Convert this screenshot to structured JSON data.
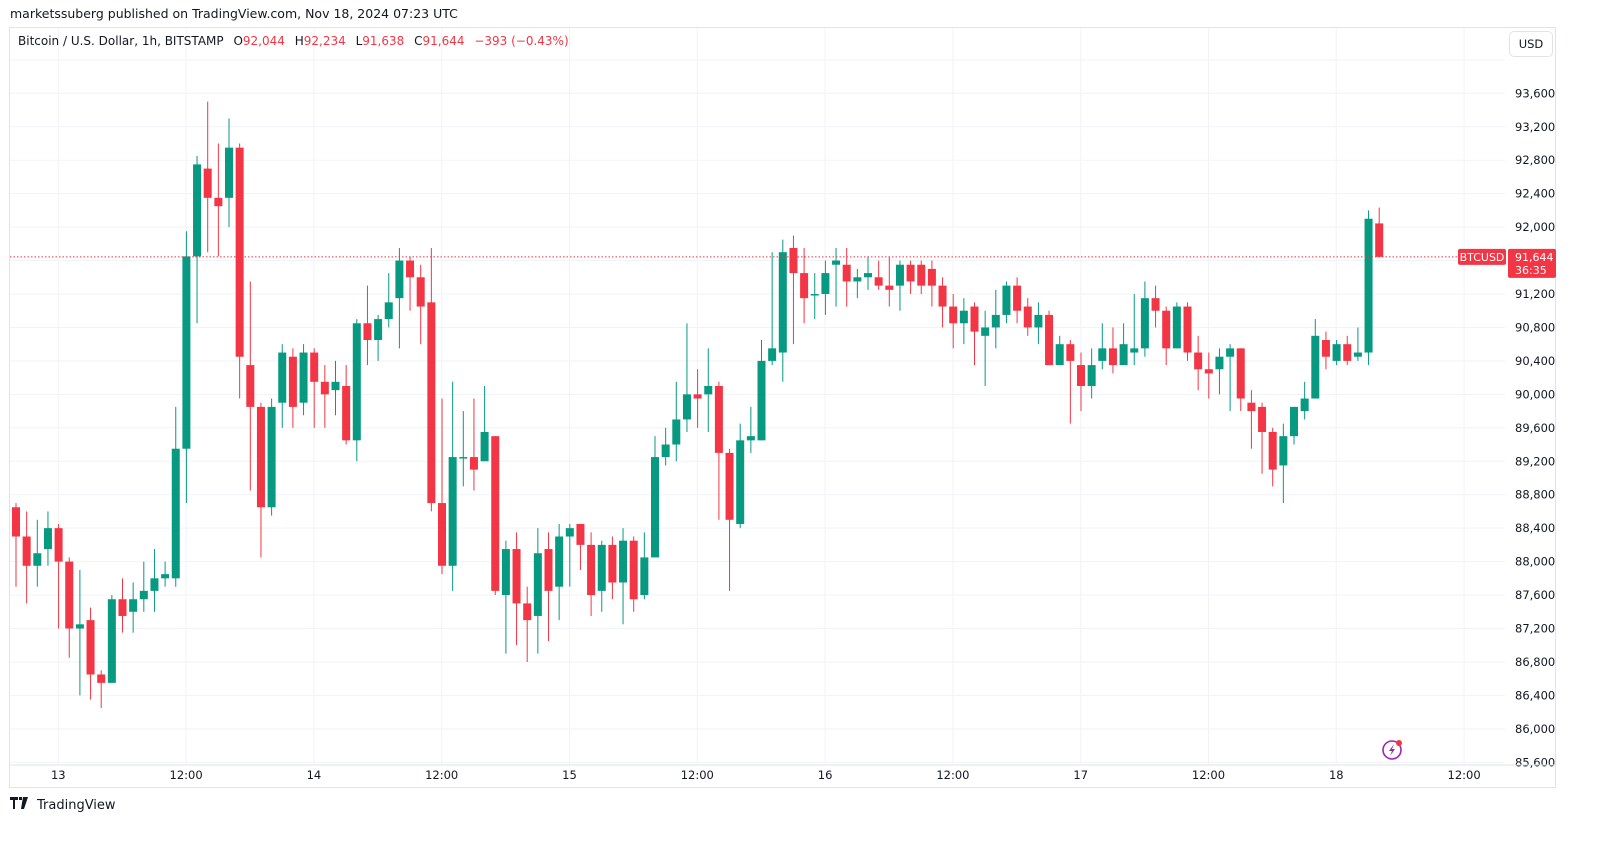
{
  "publish_line": "marketssuberg published on TradingView.com, Nov 18, 2024 07:23 UTC",
  "legend": {
    "symbol": "Bitcoin / U.S. Dollar, 1h, BITSTAMP",
    "open_label": "O",
    "open": "92,044",
    "high_label": "H",
    "high": "92,234",
    "low_label": "L",
    "low": "91,638",
    "close_label": "C",
    "close": "91,644",
    "change": "−393 (−0.43%)"
  },
  "currency_button": "USD",
  "price_tag": {
    "symbol": "BTCUSD",
    "price": "91,644",
    "countdown": "36:35"
  },
  "footer": {
    "logo_icon": "tradingview-logo-icon",
    "brand": "TradingView"
  },
  "colors": {
    "up": "#089981",
    "down": "#f23645",
    "grid": "#f0f3fa",
    "last_price_line": "#f23645",
    "text": "#131722",
    "lightning_icon": "#9c27b0"
  },
  "chart_data": {
    "type": "candlestick",
    "title": "Bitcoin / U.S. Dollar, 1h, BITSTAMP",
    "xlabel": "",
    "ylabel": "USD",
    "ylim": [
      85500,
      94100
    ],
    "y_ticks": [
      85600,
      86000,
      86400,
      86800,
      87200,
      87600,
      88000,
      88400,
      88800,
      89200,
      89600,
      90000,
      90400,
      90800,
      91200,
      91600,
      92000,
      92400,
      92800,
      93200,
      93600
    ],
    "y_tick_labels": [
      "85,600",
      "86,000",
      "86,400",
      "86,800",
      "87,200",
      "87,600",
      "88,000",
      "88,400",
      "88,800",
      "89,200",
      "89,600",
      "90,000",
      "90,400",
      "90,800",
      "91,200",
      "",
      "92,000",
      "92,400",
      "92,800",
      "93,200",
      "93,600"
    ],
    "x_ticks": [
      {
        "label": "13",
        "index": 2
      },
      {
        "label": "12:00",
        "index": 14
      },
      {
        "label": "14",
        "index": 26
      },
      {
        "label": "12:00",
        "index": 38
      },
      {
        "label": "15",
        "index": 50
      },
      {
        "label": "12:00",
        "index": 62
      },
      {
        "label": "16",
        "index": 74
      },
      {
        "label": "12:00",
        "index": 86
      },
      {
        "label": "17",
        "index": 98
      },
      {
        "label": "12:00",
        "index": 110
      },
      {
        "label": "18",
        "index": 122
      },
      {
        "label": "12:00",
        "index": 134
      }
    ],
    "last_price": 91644,
    "grid": true,
    "legend_position": "top-left",
    "candles": [
      [
        88650,
        88300,
        88700,
        87700
      ],
      [
        88300,
        87950,
        88600,
        87500
      ],
      [
        87950,
        88100,
        88500,
        87700
      ],
      [
        88150,
        88400,
        88600,
        87950
      ],
      [
        88400,
        88000,
        88450,
        87200
      ],
      [
        88000,
        87200,
        88050,
        86850
      ],
      [
        87200,
        87250,
        87900,
        86400
      ],
      [
        87300,
        86650,
        87450,
        86350
      ],
      [
        86650,
        86550,
        86700,
        86250
      ],
      [
        86550,
        87550,
        87600,
        86550
      ],
      [
        87550,
        87350,
        87800,
        87150
      ],
      [
        87400,
        87550,
        87750,
        87150
      ],
      [
        87550,
        87650,
        88000,
        87400
      ],
      [
        87650,
        87800,
        88150,
        87400
      ],
      [
        87800,
        87850,
        88000,
        87700
      ],
      [
        87800,
        89350,
        89850,
        87700
      ],
      [
        89350,
        91650,
        91950,
        88700
      ],
      [
        91650,
        92750,
        92850,
        90850
      ],
      [
        92700,
        92350,
        93500,
        91700
      ],
      [
        92350,
        92250,
        93000,
        91650
      ],
      [
        92350,
        92950,
        93300,
        92000
      ],
      [
        92950,
        90450,
        93000,
        89950
      ],
      [
        90350,
        89850,
        91350,
        88850
      ],
      [
        89850,
        88650,
        89900,
        88050
      ],
      [
        88650,
        89850,
        89950,
        88550
      ],
      [
        89900,
        90500,
        90600,
        89600
      ],
      [
        90450,
        89850,
        90550,
        89600
      ],
      [
        89900,
        90500,
        90600,
        89750
      ],
      [
        90500,
        90150,
        90550,
        89600
      ],
      [
        90150,
        90000,
        90350,
        89600
      ],
      [
        90050,
        90150,
        90400,
        89750
      ],
      [
        90100,
        89450,
        90350,
        89400
      ],
      [
        89450,
        90850,
        90900,
        89200
      ],
      [
        90850,
        90650,
        91300,
        90350
      ],
      [
        90650,
        90900,
        90950,
        90400
      ],
      [
        90900,
        91100,
        91450,
        90800
      ],
      [
        91150,
        91600,
        91750,
        90550
      ],
      [
        91600,
        91400,
        91650,
        91000
      ],
      [
        91400,
        91050,
        91550,
        90600
      ],
      [
        91100,
        88700,
        91750,
        88600
      ],
      [
        88700,
        87950,
        89950,
        87850
      ],
      [
        87950,
        89250,
        90150,
        87650
      ],
      [
        89250,
        89250,
        89800,
        88900
      ],
      [
        89250,
        89100,
        89950,
        88850
      ],
      [
        89200,
        89550,
        90100,
        89200
      ],
      [
        89500,
        87650,
        89500,
        87600
      ],
      [
        87600,
        88150,
        88250,
        86900
      ],
      [
        88150,
        87500,
        88350,
        87000
      ],
      [
        87500,
        87300,
        87700,
        86800
      ],
      [
        87350,
        88100,
        88400,
        86900
      ],
      [
        88150,
        87650,
        88350,
        87050
      ],
      [
        87700,
        88300,
        88450,
        87300
      ],
      [
        88300,
        88400,
        88450,
        87700
      ],
      [
        88450,
        88200,
        88450,
        87900
      ],
      [
        88200,
        87600,
        88350,
        87350
      ],
      [
        87650,
        88200,
        88250,
        87400
      ],
      [
        88200,
        87750,
        88300,
        87550
      ],
      [
        87750,
        88250,
        88400,
        87250
      ],
      [
        88250,
        87550,
        88300,
        87400
      ],
      [
        87600,
        88050,
        88350,
        87550
      ],
      [
        88050,
        89250,
        89500,
        88050
      ],
      [
        89250,
        89400,
        89600,
        89150
      ],
      [
        89400,
        89700,
        90150,
        89200
      ],
      [
        89700,
        90000,
        90850,
        89550
      ],
      [
        90000,
        89950,
        90300,
        89600
      ],
      [
        90000,
        90100,
        90550,
        89550
      ],
      [
        90100,
        89300,
        90150,
        88500
      ],
      [
        89300,
        88500,
        89350,
        87650
      ],
      [
        88450,
        89450,
        89650,
        88400
      ],
      [
        89450,
        89500,
        89850,
        89300
      ],
      [
        89450,
        90400,
        90650,
        89450
      ],
      [
        90400,
        90550,
        91700,
        90350
      ],
      [
        90500,
        91700,
        91850,
        90150
      ],
      [
        91750,
        91450,
        91900,
        90600
      ],
      [
        91450,
        91150,
        91750,
        90850
      ],
      [
        91200,
        91200,
        91450,
        90900
      ],
      [
        91200,
        91450,
        91600,
        90950
      ],
      [
        91550,
        91600,
        91750,
        91050
      ],
      [
        91550,
        91350,
        91750,
        91050
      ],
      [
        91350,
        91400,
        91500,
        91150
      ],
      [
        91400,
        91450,
        91650,
        91250
      ],
      [
        91400,
        91300,
        91600,
        91250
      ],
      [
        91300,
        91250,
        91650,
        91050
      ],
      [
        91300,
        91550,
        91600,
        91000
      ],
      [
        91550,
        91350,
        91600,
        91200
      ],
      [
        91550,
        91300,
        91600,
        91200
      ],
      [
        91500,
        91300,
        91600,
        91050
      ],
      [
        91300,
        91050,
        91400,
        90800
      ],
      [
        91050,
        90850,
        91200,
        90550
      ],
      [
        90850,
        91000,
        91150,
        90600
      ],
      [
        91050,
        90750,
        91100,
        90350
      ],
      [
        90700,
        90800,
        91000,
        90100
      ],
      [
        90800,
        90950,
        91250,
        90550
      ],
      [
        90950,
        91300,
        91350,
        90850
      ],
      [
        91300,
        91000,
        91400,
        90850
      ],
      [
        91050,
        90800,
        91150,
        90700
      ],
      [
        90800,
        90950,
        91100,
        90600
      ],
      [
        90950,
        90350,
        91000,
        90350
      ],
      [
        90350,
        90600,
        90700,
        90350
      ],
      [
        90600,
        90400,
        90650,
        89650
      ],
      [
        90350,
        90100,
        90500,
        89800
      ],
      [
        90100,
        90350,
        90550,
        89950
      ],
      [
        90400,
        90550,
        90850,
        90300
      ],
      [
        90550,
        90350,
        90800,
        90250
      ],
      [
        90350,
        90600,
        90850,
        90400
      ],
      [
        90500,
        90550,
        91200,
        90350
      ],
      [
        90550,
        91150,
        91350,
        90450
      ],
      [
        91150,
        91000,
        91300,
        90800
      ],
      [
        91000,
        90550,
        91050,
        90350
      ],
      [
        90550,
        91050,
        91100,
        90550
      ],
      [
        91050,
        90500,
        91100,
        90400
      ],
      [
        90500,
        90300,
        90700,
        90050
      ],
      [
        90300,
        90250,
        90500,
        89950
      ],
      [
        90300,
        90450,
        90550,
        90000
      ],
      [
        90450,
        90550,
        90600,
        89800
      ],
      [
        90550,
        89950,
        90550,
        89800
      ],
      [
        89900,
        89800,
        90050,
        89350
      ],
      [
        89850,
        89550,
        89900,
        89050
      ],
      [
        89550,
        89100,
        89600,
        88900
      ],
      [
        89150,
        89500,
        89650,
        88700
      ],
      [
        89500,
        89850,
        89850,
        89400
      ],
      [
        89800,
        89950,
        90150,
        89700
      ],
      [
        89950,
        90700,
        90900,
        89950
      ],
      [
        90650,
        90450,
        90750,
        90300
      ],
      [
        90400,
        90600,
        90650,
        90350
      ],
      [
        90600,
        90400,
        90700,
        90350
      ],
      [
        90450,
        90500,
        90800,
        90400
      ],
      [
        90500,
        92100,
        92200,
        90350
      ],
      [
        92044,
        91644,
        92234,
        91638
      ]
    ]
  }
}
